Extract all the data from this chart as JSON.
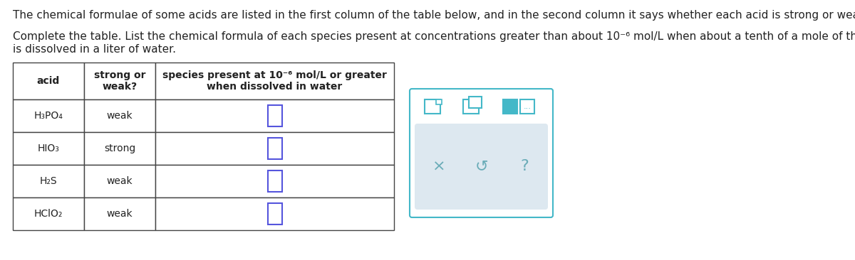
{
  "para1": "The chemical formulae of some acids are listed in the first column of the table below, and in the second column it says whether each acid is strong or weak.",
  "para2a": "Complete the table. List the chemical formula of each species present at concentrations greater than about 10⁻⁶ mol/L when about a tenth of a mole of the acid",
  "para2b": "is dissolved in a liter of water.",
  "col_headers": [
    "acid",
    "strong or\nweak?",
    "species present at 10⁻⁶ mol/L or greater\nwhen dissolved in water"
  ],
  "rows": [
    [
      "H₃PO₄",
      "weak"
    ],
    [
      "HIO₃",
      "strong"
    ],
    [
      "H₂S",
      "weak"
    ],
    [
      "HClO₂",
      "weak"
    ]
  ],
  "bg_color": "#ffffff",
  "border_color": "#444444",
  "text_color": "#222222",
  "input_box_color": "#5555dd",
  "widget_border_color": "#44b8c8",
  "widget_bg_color": "#dde8f0",
  "font_size": 10
}
